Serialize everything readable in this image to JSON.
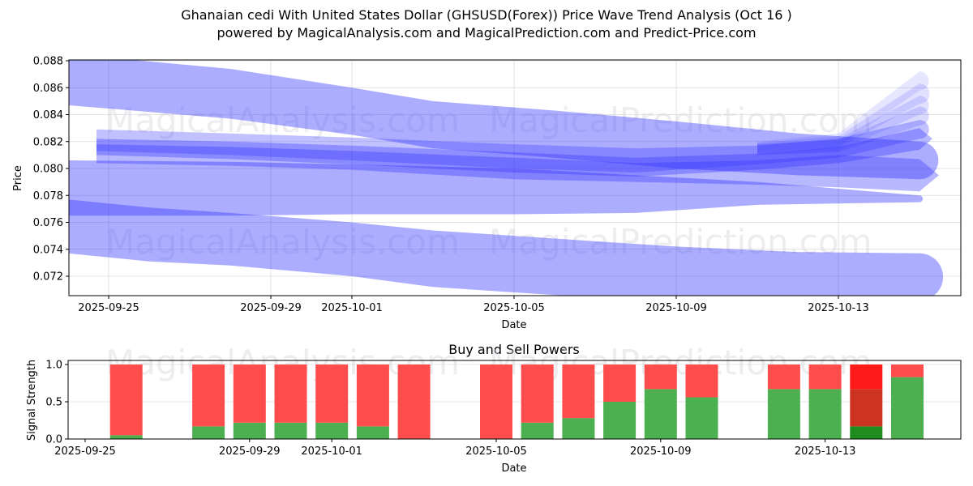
{
  "header": {
    "title": "Ghanaian cedi With United States Dollar (GHSUSD(Forex)) Price Wave Trend Analysis (Oct 16 )",
    "subtitle": "powered by MagicalAnalysis.com and MagicalPrediction.com and Predict-Price.com"
  },
  "watermarks": [
    "MagicalAnalysis.com",
    "MagicalPrediction.com"
  ],
  "colors": {
    "wave": "#3333ff",
    "buy": "#4caf50",
    "sell": "#ff4d4d",
    "buy_dark": "#1e8c1e",
    "sell_dark": "#cc3320",
    "sell_bright": "#ff1a1a"
  },
  "chart_data": [
    {
      "type": "area",
      "name": "price-wave-trend",
      "title": "",
      "xlabel": "Date",
      "ylabel": "Price",
      "xlim": [
        "2025-09-24",
        "2025-10-16"
      ],
      "ylim": [
        0.0706,
        0.088
      ],
      "yticks": [
        0.072,
        0.074,
        0.076,
        0.078,
        0.08,
        0.082,
        0.084,
        0.086,
        0.088
      ],
      "ytick_labels": [
        "0.072",
        "0.074",
        "0.076",
        "0.078",
        "0.080",
        "0.082",
        "0.084",
        "0.086",
        "0.088"
      ],
      "xticks": [
        "2025-09-25",
        "2025-09-29",
        "2025-10-01",
        "2025-10-05",
        "2025-10-09",
        "2025-10-13"
      ],
      "grid": true,
      "bands": [
        {
          "name": "upper-wave",
          "x": [
            "2025-09-24",
            "2025-09-28",
            "2025-10-01",
            "2025-10-03",
            "2025-10-06",
            "2025-10-09",
            "2025-10-12",
            "2025-10-15"
          ],
          "upper": [
            0.0885,
            0.0874,
            0.086,
            0.085,
            0.0843,
            0.0835,
            0.0826,
            0.082
          ],
          "lower": [
            0.0847,
            0.0837,
            0.0825,
            0.0815,
            0.0808,
            0.08,
            0.0795,
            0.0792
          ],
          "alpha": 0.4,
          "cap": "round"
        },
        {
          "name": "middle-wave",
          "x": [
            "2025-09-24",
            "2025-09-28",
            "2025-10-01",
            "2025-10-05",
            "2025-10-08",
            "2025-10-11",
            "2025-10-15"
          ],
          "upper": [
            0.0806,
            0.0805,
            0.0803,
            0.08,
            0.0795,
            0.079,
            0.078
          ],
          "lower": [
            0.0765,
            0.0765,
            0.0766,
            0.0766,
            0.0767,
            0.0773,
            0.0775
          ],
          "alpha": 0.4,
          "cap": "round"
        },
        {
          "name": "lower-wave",
          "x": [
            "2025-09-24",
            "2025-09-26",
            "2025-09-28",
            "2025-10-01",
            "2025-10-03",
            "2025-10-06",
            "2025-10-09",
            "2025-10-12",
            "2025-10-15"
          ],
          "upper": [
            0.0777,
            0.0771,
            0.0767,
            0.076,
            0.0754,
            0.0748,
            0.0742,
            0.0738,
            0.0737
          ],
          "lower": [
            0.0737,
            0.0731,
            0.0728,
            0.072,
            0.0712,
            0.0706,
            0.0703,
            0.0702,
            0.0702
          ],
          "alpha": 0.4,
          "cap": "round"
        },
        {
          "name": "core-wave-1",
          "x": [
            "2025-09-24.7",
            "2025-09-28",
            "2025-10-01",
            "2025-10-05",
            "2025-10-08",
            "2025-10-11",
            "2025-10-13",
            "2025-10-15"
          ],
          "upper": [
            0.0829,
            0.0826,
            0.0823,
            0.0818,
            0.0815,
            0.0817,
            0.0822,
            0.0836
          ],
          "lower": [
            0.0813,
            0.081,
            0.0806,
            0.08,
            0.0797,
            0.0803,
            0.0808,
            0.0822
          ],
          "alpha": 0.3,
          "cap": "round"
        },
        {
          "name": "core-wave-2",
          "x": [
            "2025-09-24.7",
            "2025-09-28",
            "2025-10-01",
            "2025-10-05",
            "2025-10-08",
            "2025-10-11",
            "2025-10-13",
            "2025-10-15"
          ],
          "upper": [
            0.0822,
            0.082,
            0.0817,
            0.0812,
            0.0808,
            0.0811,
            0.0816,
            0.083
          ],
          "lower": [
            0.081,
            0.0807,
            0.0803,
            0.0797,
            0.0794,
            0.0799,
            0.0804,
            0.0814
          ],
          "alpha": 0.35,
          "cap": "arrow"
        },
        {
          "name": "core-wave-3",
          "x": [
            "2025-09-24.7",
            "2025-09-28",
            "2025-10-01",
            "2025-10-05",
            "2025-10-08",
            "2025-10-11",
            "2025-10-13",
            "2025-10-15"
          ],
          "upper": [
            0.0818,
            0.0816,
            0.0813,
            0.0808,
            0.0804,
            0.0806,
            0.081,
            0.0807
          ],
          "lower": [
            0.0804,
            0.0802,
            0.0799,
            0.0792,
            0.079,
            0.0788,
            0.0786,
            0.0783
          ],
          "alpha": 0.35,
          "cap": "arrow"
        },
        {
          "name": "fan-1",
          "x": [
            "2025-10-11",
            "2025-10-13",
            "2025-10-15"
          ],
          "upper": [
            0.082,
            0.0826,
            0.0872
          ],
          "lower": [
            0.0812,
            0.0816,
            0.0858
          ],
          "alpha": 0.12,
          "cap": "round"
        },
        {
          "name": "fan-2",
          "x": [
            "2025-10-11",
            "2025-10-13",
            "2025-10-15"
          ],
          "upper": [
            0.0819,
            0.0824,
            0.0863
          ],
          "lower": [
            0.0811,
            0.0815,
            0.0848
          ],
          "alpha": 0.15,
          "cap": "round"
        },
        {
          "name": "fan-3",
          "x": [
            "2025-10-11",
            "2025-10-13",
            "2025-10-15"
          ],
          "upper": [
            0.0818,
            0.0822,
            0.0854
          ],
          "lower": [
            0.081,
            0.0813,
            0.084
          ],
          "alpha": 0.15,
          "cap": "round"
        },
        {
          "name": "fan-4",
          "x": [
            "2025-10-11",
            "2025-10-13",
            "2025-10-15"
          ],
          "upper": [
            0.0818,
            0.0821,
            0.0846
          ],
          "lower": [
            0.081,
            0.0812,
            0.0832
          ],
          "alpha": 0.18,
          "cap": "round"
        }
      ]
    },
    {
      "type": "bar",
      "name": "buy-and-sell-powers",
      "title": "Buy and Sell Powers",
      "xlabel": "Date",
      "ylabel": "Signal Strength",
      "ylim": [
        0,
        1.05
      ],
      "yticks": [
        0.0,
        0.5,
        1.0
      ],
      "ytick_labels": [
        "0.0",
        "0.5",
        "1.0"
      ],
      "xticks": [
        "2025-09-25",
        "2025-09-29",
        "2025-10-01",
        "2025-10-05",
        "2025-10-09",
        "2025-10-13"
      ],
      "grid": true,
      "categories": [
        "2025-09-26",
        "2025-09-28",
        "2025-09-29",
        "2025-09-30",
        "2025-10-01",
        "2025-10-02",
        "2025-10-03",
        "2025-10-05",
        "2025-10-06",
        "2025-10-07",
        "2025-10-08",
        "2025-10-09",
        "2025-10-10",
        "2025-10-12",
        "2025-10-13",
        "2025-10-14",
        "2025-10-15"
      ],
      "series": [
        {
          "name": "Buy",
          "values": [
            0.05,
            0.17,
            0.22,
            0.22,
            0.22,
            0.17,
            0.0,
            0.0,
            0.22,
            0.28,
            0.5,
            0.67,
            0.56,
            0.67,
            0.67,
            0.17,
            0.83
          ]
        },
        {
          "name": "Sell",
          "values": [
            0.95,
            0.83,
            0.78,
            0.78,
            0.78,
            0.83,
            1.0,
            1.0,
            0.78,
            0.72,
            0.5,
            0.33,
            0.44,
            0.33,
            0.33,
            0.83,
            0.17
          ]
        }
      ],
      "highlight": {
        "date": "2025-10-14",
        "buy": 0.17,
        "mid_sell": 0.5,
        "top_sell": 0.33
      }
    }
  ]
}
